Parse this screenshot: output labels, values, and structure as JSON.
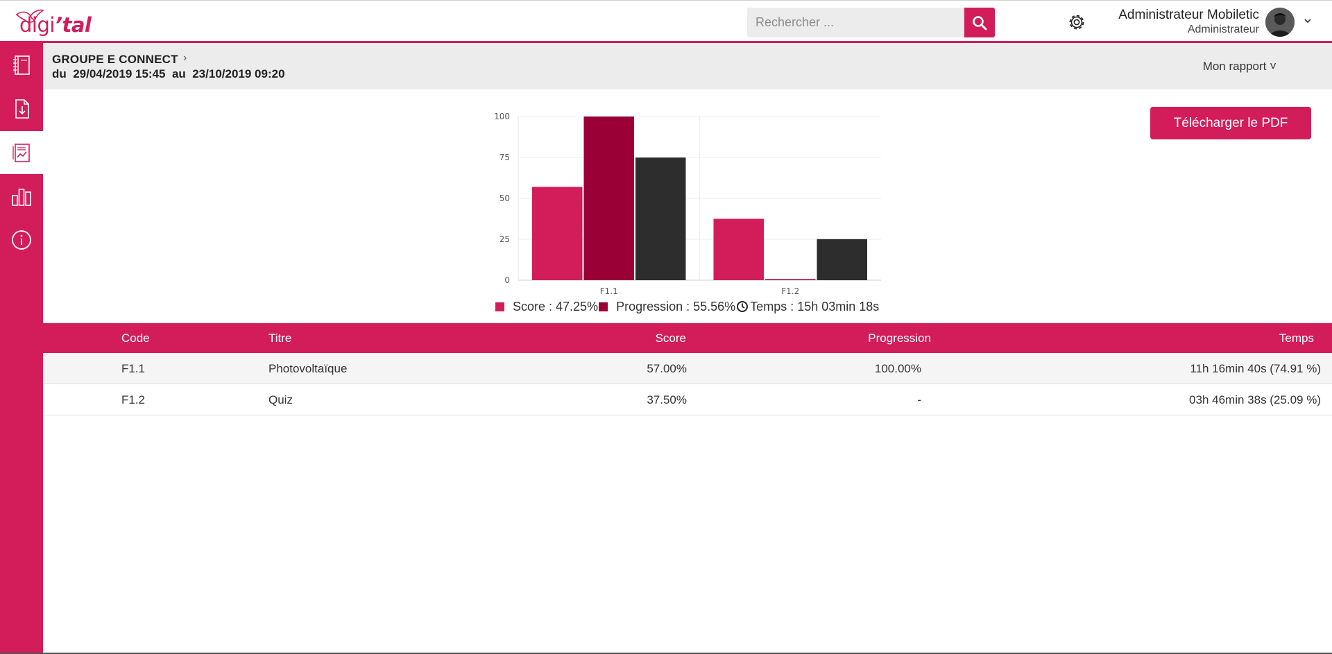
{
  "app": {
    "logo_text_a": "digi",
    "logo_text_b": "’tal"
  },
  "search": {
    "placeholder": "Rechercher ..."
  },
  "user": {
    "name": "Administrateur Mobiletic",
    "role": "Administrateur"
  },
  "header": {
    "group": "GROUPE E CONNECT",
    "crumb_arrow": "›",
    "date_range": "du  29/04/2019 15:45  au  23/10/2019 09:20",
    "report_menu": "Mon rapport ˅"
  },
  "actions": {
    "pdf_label": "Télécharger le PDF"
  },
  "colors": {
    "accent": "#d21d5a",
    "progression": "#9a0036",
    "time": "#2d2d2d"
  },
  "chart_data": {
    "type": "bar",
    "categories": [
      "F1.1",
      "F1.2"
    ],
    "series": [
      {
        "name": "Score",
        "values": [
          57,
          37.5
        ]
      },
      {
        "name": "Progression",
        "values": [
          100,
          0
        ]
      },
      {
        "name": "Temps",
        "values": [
          74.91,
          25.09
        ]
      }
    ],
    "ylim": [
      0,
      100
    ],
    "yticks": [
      0,
      25,
      50,
      75,
      100
    ],
    "grid": true,
    "legend": {
      "score": "Score   : 47.25%",
      "progression": "Progression : 55.56%",
      "time": "Temps : 15h 03min 18s"
    }
  },
  "table": {
    "headers": {
      "code": "Code",
      "title": "Titre",
      "score": "Score",
      "progression": "Progression",
      "time": "Temps"
    },
    "rows": [
      {
        "code": "F1.1",
        "title": "Photovoltaïque",
        "score": "57.00%",
        "progression": "100.00%",
        "time": "11h 16min 40s (74.91 %)"
      },
      {
        "code": "F1.2",
        "title": "Quiz",
        "score": "37.50%",
        "progression": "-",
        "time": "03h 46min 38s (25.09 %)"
      }
    ]
  }
}
